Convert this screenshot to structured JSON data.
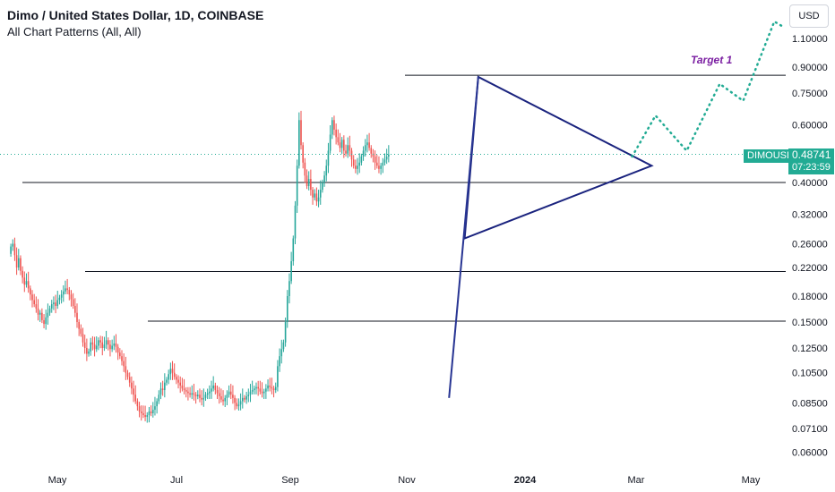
{
  "header": {
    "title": "Dimo / United States Dollar, 1D, COINBASE",
    "indicator": "All Chart Patterns (All, All)",
    "currency_button": "USD"
  },
  "price_tag": {
    "symbol": "DIMOUSD",
    "price": "0.48741",
    "countdown": "07:23:59"
  },
  "annotations": {
    "target_label": "Target 1"
  },
  "colors": {
    "up": "#26a69a",
    "down": "#ef5350",
    "pattern": "#1a237e",
    "projection": "#22ab94",
    "target_text": "#7b1fa2",
    "level": "#131722"
  },
  "chart_data": {
    "type": "candlestick",
    "y_scale": "log",
    "y_ticks": [
      "1.10000",
      "0.90000",
      "0.75000",
      "0.60000",
      "0.40000",
      "0.32000",
      "0.26000",
      "0.22000",
      "0.18000",
      "0.15000",
      "0.12500",
      "0.10500",
      "0.08500",
      "0.07100",
      "0.06000"
    ],
    "x_ticks": [
      {
        "label": "May",
        "bold": false
      },
      {
        "label": "Jul",
        "bold": false
      },
      {
        "label": "Sep",
        "bold": false
      },
      {
        "label": "Nov",
        "bold": false
      },
      {
        "label": "2024",
        "bold": true
      },
      {
        "label": "Mar",
        "bold": false
      },
      {
        "label": "May",
        "bold": false
      }
    ],
    "horizontal_levels": [
      0.85,
      0.4,
      0.214,
      0.151
    ],
    "pattern": "symmetrical triangle",
    "triangle_vertices": [
      {
        "date": "2023-12-08",
        "price": 0.84
      },
      {
        "date": "2023-12-01",
        "price": 0.27
      },
      {
        "date": "2024-03-06",
        "price": 0.45
      }
    ],
    "flagpole": [
      {
        "date": "2023-11-23",
        "price": 0.088
      },
      {
        "date": "2023-12-08",
        "price": 0.84
      }
    ],
    "projection_path": [
      {
        "date": "2024-02-25",
        "price": 0.48
      },
      {
        "date": "2024-03-08",
        "price": 0.64
      },
      {
        "date": "2024-03-24",
        "price": 0.5
      },
      {
        "date": "2024-04-10",
        "price": 0.8
      },
      {
        "date": "2024-04-22",
        "price": 0.71
      },
      {
        "date": "2024-05-08",
        "price": 1.24
      },
      {
        "date": "2024-05-12",
        "price": 1.2
      }
    ],
    "last_price": 0.48741,
    "daily_closes": [
      0.255,
      0.26,
      0.24,
      0.22,
      0.235,
      0.215,
      0.205,
      0.195,
      0.2,
      0.19,
      0.182,
      0.175,
      0.17,
      0.165,
      0.158,
      0.16,
      0.152,
      0.148,
      0.155,
      0.16,
      0.165,
      0.17,
      0.172,
      0.168,
      0.175,
      0.178,
      0.182,
      0.186,
      0.19,
      0.188,
      0.182,
      0.176,
      0.168,
      0.16,
      0.15,
      0.143,
      0.138,
      0.13,
      0.125,
      0.12,
      0.122,
      0.13,
      0.128,
      0.124,
      0.127,
      0.132,
      0.13,
      0.125,
      0.128,
      0.132,
      0.128,
      0.124,
      0.127,
      0.129,
      0.126,
      0.121,
      0.118,
      0.114,
      0.11,
      0.105,
      0.102,
      0.098,
      0.094,
      0.09,
      0.086,
      0.083,
      0.08,
      0.079,
      0.078,
      0.077,
      0.078,
      0.08,
      0.079,
      0.081,
      0.083,
      0.086,
      0.09,
      0.094,
      0.093,
      0.098,
      0.1,
      0.104,
      0.108,
      0.105,
      0.102,
      0.1,
      0.098,
      0.096,
      0.094,
      0.093,
      0.092,
      0.091,
      0.09,
      0.091,
      0.09,
      0.089,
      0.09,
      0.088,
      0.087,
      0.088,
      0.09,
      0.091,
      0.092,
      0.094,
      0.096,
      0.093,
      0.091,
      0.089,
      0.087,
      0.086,
      0.088,
      0.09,
      0.092,
      0.09,
      0.088,
      0.085,
      0.083,
      0.084,
      0.086,
      0.088,
      0.087,
      0.089,
      0.09,
      0.092,
      0.093,
      0.094,
      0.095,
      0.094,
      0.092,
      0.091,
      0.092,
      0.094,
      0.096,
      0.095,
      0.094,
      0.093,
      0.095,
      0.11,
      0.118,
      0.124,
      0.13,
      0.15,
      0.18,
      0.2,
      0.23,
      0.27,
      0.34,
      0.45,
      0.62,
      0.52,
      0.46,
      0.42,
      0.39,
      0.41,
      0.38,
      0.36,
      0.37,
      0.35,
      0.36,
      0.38,
      0.4,
      0.42,
      0.45,
      0.5,
      0.56,
      0.62,
      0.58,
      0.55,
      0.53,
      0.51,
      0.54,
      0.5,
      0.49,
      0.52,
      0.5,
      0.47,
      0.45,
      0.44,
      0.45,
      0.46,
      0.48,
      0.5,
      0.52,
      0.53,
      0.51,
      0.49,
      0.48,
      0.46,
      0.45,
      0.44,
      0.45,
      0.46,
      0.47,
      0.48,
      0.487
    ]
  }
}
